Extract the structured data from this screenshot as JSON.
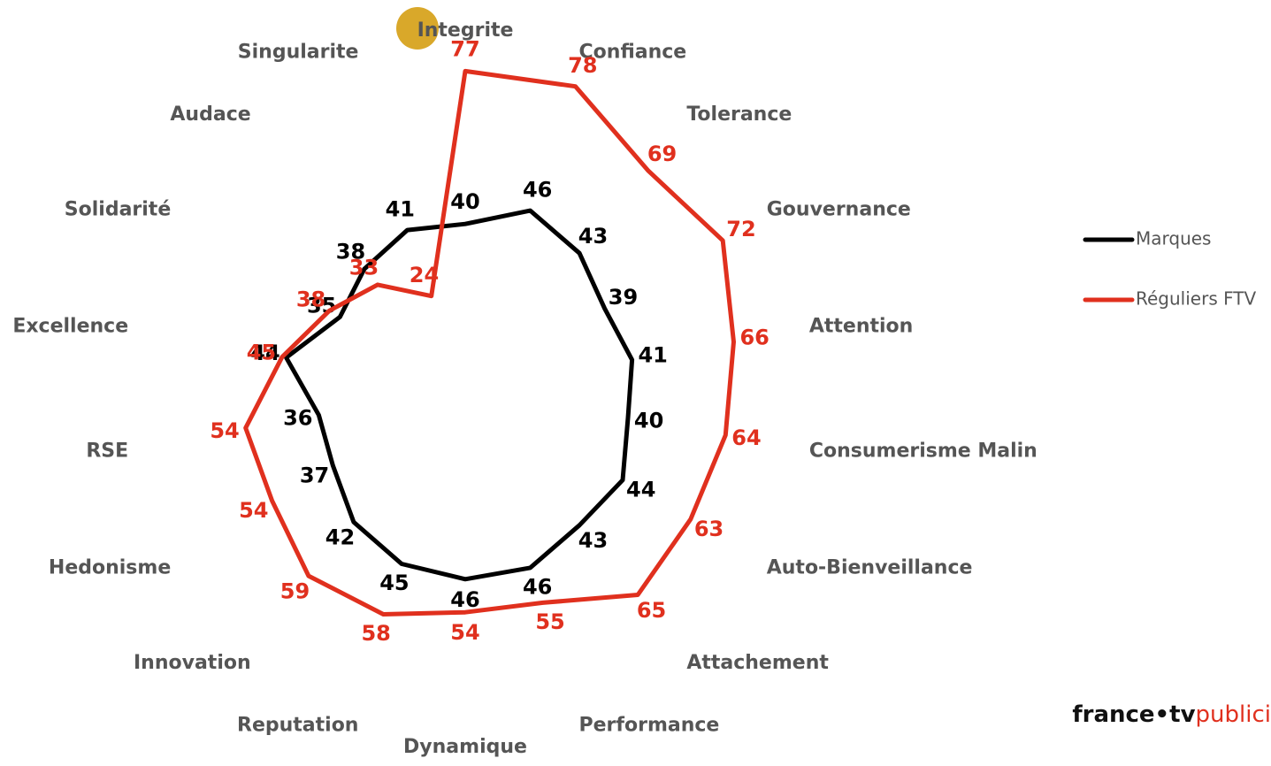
{
  "chart_data": {
    "type": "radar",
    "categories": [
      "Integrite",
      "Confiance",
      "Tolerance",
      "Gouvernance",
      "Attention",
      "Consumerisme Malin",
      "Auto-Bienveillance",
      "Attachement",
      "Performance",
      "Dynamique",
      "Reputation",
      "Innovation",
      "Hedonisme",
      "RSE",
      "Excellence",
      "Solidarité",
      "Audace",
      "Singularite"
    ],
    "series": [
      {
        "name": "Marques",
        "color": "#000000",
        "values": [
          40,
          46,
          43,
          39,
          41,
          40,
          44,
          43,
          46,
          46,
          45,
          42,
          37,
          36,
          44,
          35,
          38,
          41
        ]
      },
      {
        "name": "Réguliers FTV",
        "color": "#e0301e",
        "values": [
          77,
          78,
          69,
          72,
          66,
          64,
          63,
          65,
          55,
          54,
          58,
          59,
          54,
          54,
          45,
          38,
          33,
          24
        ]
      }
    ],
    "ylim": [
      0,
      100
    ],
    "grid": false,
    "legend": "right",
    "logo": {
      "brand": "france•tv",
      "suffix": "publici"
    }
  }
}
